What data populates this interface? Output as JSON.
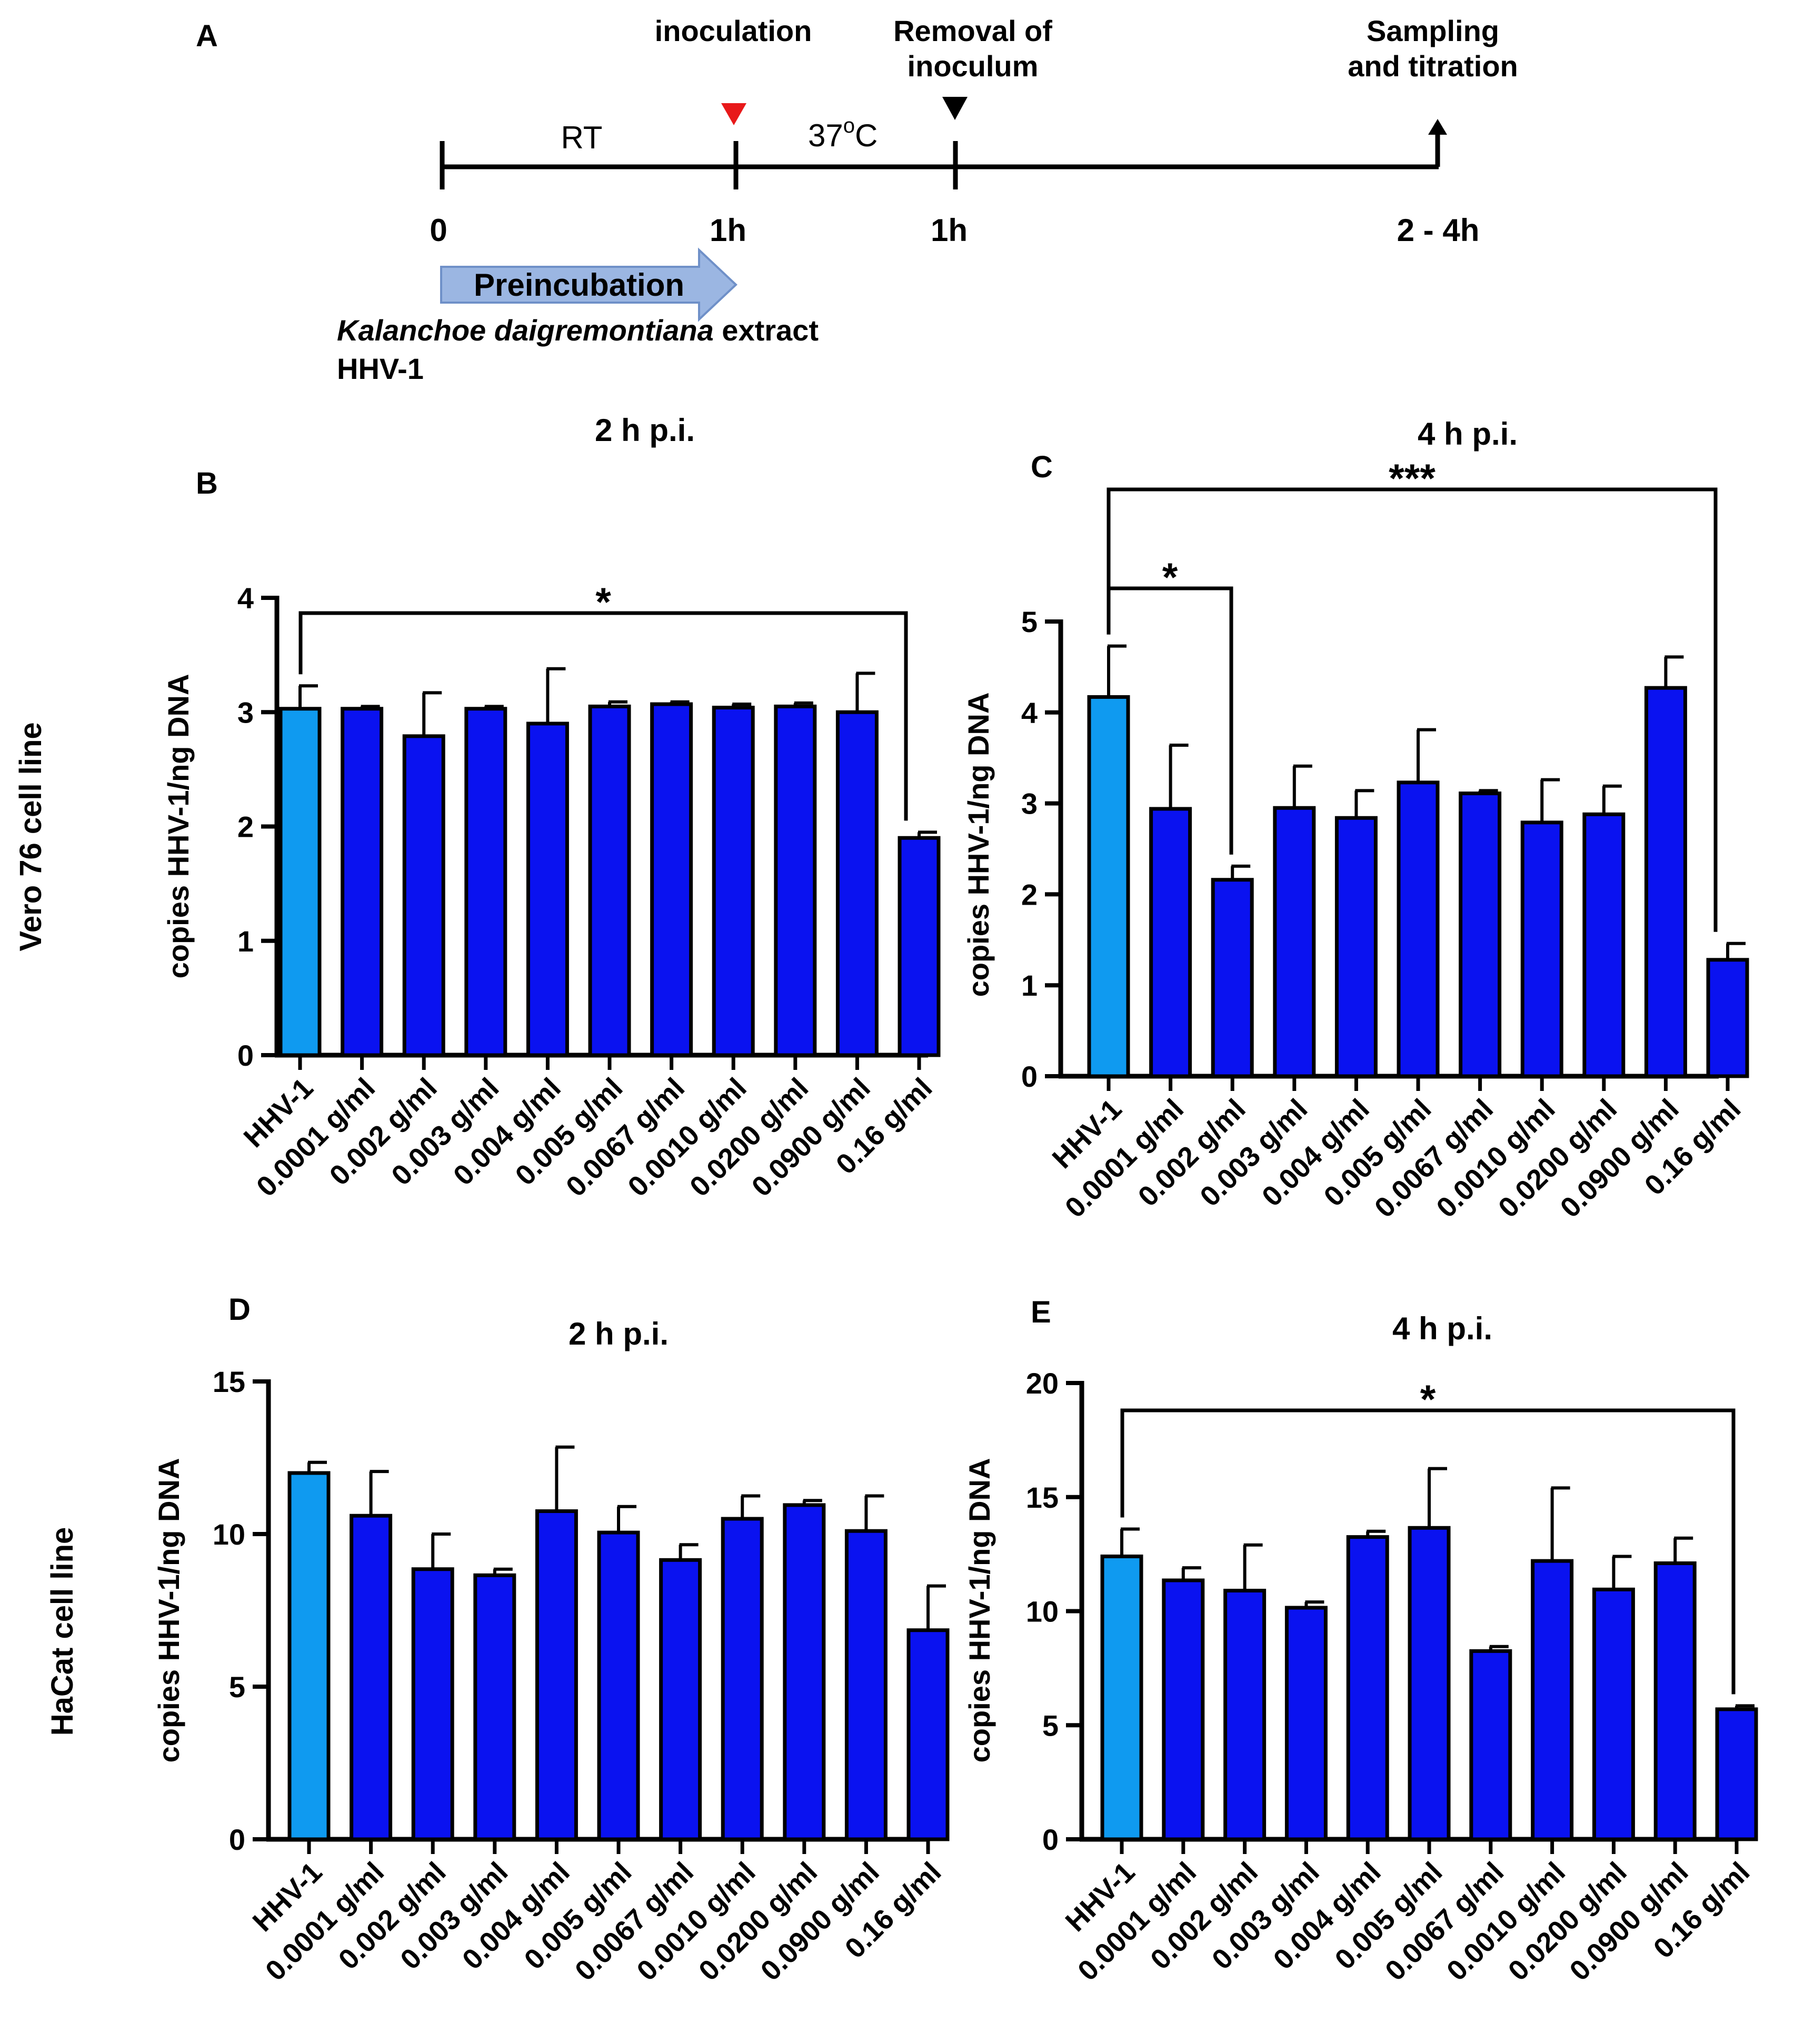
{
  "colors": {
    "control": "#0F9AF0",
    "treated": "#0A12F0",
    "marker_inoculation": "#E8191A",
    "arrow_fill": "#9BB6E2",
    "arrow_edge": "#6F90C8"
  },
  "timeline": {
    "panel_letter": "A",
    "inoculation_label": "inoculation",
    "removal_label_1": "Removal of",
    "removal_label_2": "inoculum",
    "sampling_label_1": "Sampling",
    "sampling_label_2": "and titration",
    "rt_label": "RT",
    "temp_label_main": "37",
    "temp_label_sup": "o",
    "temp_label_unit": "C",
    "tick_0": "0",
    "tick_1": "1h",
    "tick_2": "1h",
    "tick_3": "2 - 4h",
    "preincubation_label": "Preincubation",
    "extract_label_italic": "Kalanchoe daigremontiana",
    "extract_label_rest": " extract",
    "virus_label": "HHV-1"
  },
  "row_labels": [
    "Vero 76 cell line",
    "HaCat cell line"
  ],
  "ylabel": "copies HHV-1/ng DNA",
  "chart_data": [
    {
      "panel": "B",
      "type": "bar",
      "title": "2 h p.i.",
      "ylabel": "copies HHV-1/ng DNA",
      "categories": [
        "HHV-1",
        "0.0001 g/ml",
        "0.002 g/ml",
        "0.003 g/ml",
        "0.004 g/ml",
        "0.005 g/ml",
        "0.0067 g/ml",
        "0.0010 g/ml",
        "0.0200 g/ml",
        "0.0900 g/ml",
        "0.16 g/ml"
      ],
      "values": [
        3.03,
        3.03,
        2.79,
        3.03,
        2.9,
        3.05,
        3.07,
        3.04,
        3.05,
        3.0,
        1.9
      ],
      "errors": [
        0.2,
        0.02,
        0.38,
        0.02,
        0.48,
        0.04,
        0.02,
        0.03,
        0.03,
        0.34,
        0.05
      ],
      "ylim": [
        0,
        4
      ],
      "yticks": [
        "0",
        "1",
        "2",
        "3",
        "4"
      ],
      "significance": [
        {
          "from": 0,
          "to": 10,
          "label": "*"
        }
      ]
    },
    {
      "panel": "C",
      "type": "bar",
      "title": "4 h p.i.",
      "ylabel": "copies HHV-1/ng DNA",
      "categories": [
        "HHV-1",
        "0.0001 g/ml",
        "0.002 g/ml",
        "0.003 g/ml",
        "0.004 g/ml",
        "0.005 g/ml",
        "0.0067 g/ml",
        "0.0010 g/ml",
        "0.0200 g/ml",
        "0.0900 g/ml",
        "0.16 g/ml"
      ],
      "values": [
        4.17,
        2.94,
        2.16,
        2.95,
        2.84,
        3.23,
        3.11,
        2.79,
        2.88,
        4.27,
        1.28
      ],
      "errors": [
        0.56,
        0.7,
        0.15,
        0.46,
        0.3,
        0.58,
        0.03,
        0.47,
        0.31,
        0.34,
        0.18
      ],
      "ylim": [
        0,
        5
      ],
      "yticks": [
        "0",
        "1",
        "2",
        "3",
        "4",
        "5"
      ],
      "significance": [
        {
          "from": 0,
          "to": 10,
          "label": "***"
        },
        {
          "from": 0,
          "to": 2,
          "label": "*"
        }
      ]
    },
    {
      "panel": "D",
      "type": "bar",
      "title": "2 h p.i.",
      "ylabel": "copies HHV-1/ng DNA",
      "categories": [
        "HHV-1",
        "0.0001 g/ml",
        "0.002 g/ml",
        "0.003 g/ml",
        "0.004 g/ml",
        "0.005 g/ml",
        "0.0067 g/ml",
        "0.0010 g/ml",
        "0.0200 g/ml",
        "0.0900 g/ml",
        "0.16 g/ml"
      ],
      "values": [
        12.0,
        10.6,
        8.85,
        8.65,
        10.75,
        10.05,
        9.15,
        10.5,
        10.95,
        10.1,
        6.85
      ],
      "errors": [
        0.35,
        1.45,
        1.15,
        0.2,
        2.1,
        0.85,
        0.5,
        0.75,
        0.15,
        1.15,
        1.45
      ],
      "ylim": [
        0,
        15
      ],
      "yticks": [
        "0",
        "5",
        "10",
        "15"
      ],
      "significance": []
    },
    {
      "panel": "E",
      "type": "bar",
      "title": "4 h p.i.",
      "ylabel": "copies HHV-1/ng DNA",
      "categories": [
        "HHV-1",
        "0.0001 g/ml",
        "0.002 g/ml",
        "0.003 g/ml",
        "0.004 g/ml",
        "0.005 g/ml",
        "0.0067 g/ml",
        "0.0010 g/ml",
        "0.0200 g/ml",
        "0.0900 g/ml",
        "0.16 g/ml"
      ],
      "values": [
        12.4,
        11.35,
        10.9,
        10.15,
        13.25,
        13.65,
        8.25,
        12.2,
        10.95,
        12.1,
        5.7
      ],
      "errors": [
        1.2,
        0.55,
        2.0,
        0.25,
        0.25,
        2.6,
        0.2,
        3.2,
        1.45,
        1.1,
        0.15
      ],
      "ylim": [
        0,
        20
      ],
      "yticks": [
        "0",
        "5",
        "10",
        "15",
        "20"
      ],
      "significance": [
        {
          "from": 0,
          "to": 10,
          "label": "*"
        }
      ]
    }
  ]
}
